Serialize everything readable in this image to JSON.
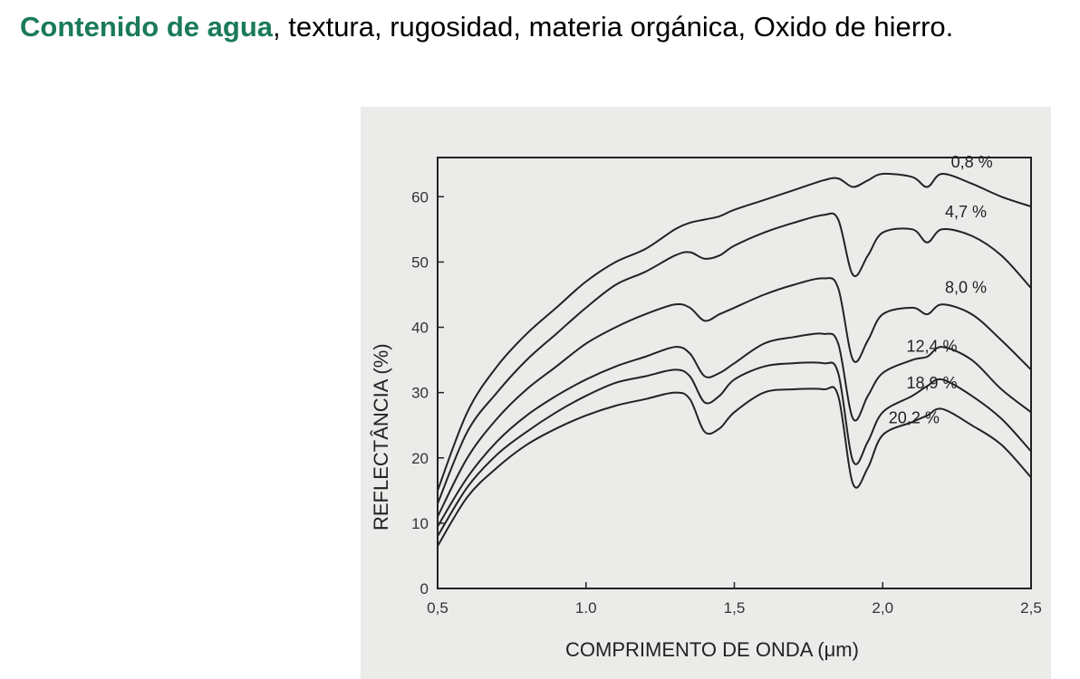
{
  "heading": {
    "accent": "Contenido de agua",
    "rest": ", textura, rugosidad, materia orgánica, Oxido de hierro."
  },
  "colors": {
    "accent": "#1a7a5c",
    "figure_background": "#ebebe9",
    "line": "#222222"
  },
  "chart_data": {
    "type": "line",
    "xlabel": "COMPRIMENTO DE ONDA (μm)",
    "ylabel": "REFLECTÂNCIA (%)",
    "xlim": [
      0.5,
      2.5
    ],
    "ylim": [
      0,
      66
    ],
    "x_ticks": [
      0.5,
      1.0,
      1.5,
      2.0,
      2.5
    ],
    "x_tick_labels": [
      "0,5",
      "1.0",
      "1,5",
      "2,0",
      "2,5"
    ],
    "y_ticks": [
      0,
      10,
      20,
      30,
      40,
      50,
      60
    ],
    "y_tick_labels": [
      "0",
      "10",
      "20",
      "30",
      "40",
      "50",
      "60"
    ],
    "grid": false,
    "legend": "inline labels at right",
    "x": [
      0.5,
      0.6,
      0.7,
      0.8,
      0.9,
      1.0,
      1.1,
      1.2,
      1.3,
      1.35,
      1.4,
      1.45,
      1.5,
      1.6,
      1.7,
      1.8,
      1.85,
      1.9,
      1.95,
      2.0,
      2.1,
      2.15,
      2.2,
      2.3,
      2.4,
      2.5
    ],
    "series": [
      {
        "name": "0,8 %",
        "values": [
          15,
          27,
          34,
          39,
          43,
          47,
          50,
          52,
          55,
          56,
          56.5,
          57,
          58,
          59.5,
          61,
          62.5,
          62.8,
          61.5,
          62.5,
          63.5,
          63,
          61.5,
          63.5,
          62,
          60,
          58.5
        ]
      },
      {
        "name": "4,7 %",
        "values": [
          13,
          24,
          30,
          35,
          39,
          43,
          46.5,
          48.5,
          51,
          51.5,
          50.5,
          51,
          52.5,
          54.5,
          56,
          57.2,
          56.5,
          48,
          51,
          54.5,
          55,
          53,
          55,
          54,
          51,
          46
        ]
      },
      {
        "name": "8,0 %",
        "values": [
          11,
          20,
          26,
          30.5,
          34,
          37.5,
          40,
          42,
          43.5,
          43,
          41,
          42,
          43,
          45,
          46.5,
          47.5,
          46,
          35,
          38,
          42,
          43,
          42,
          43.5,
          42,
          38,
          33.5
        ]
      },
      {
        "name": "12,4 %",
        "values": [
          9.5,
          17,
          22.5,
          26.5,
          29.5,
          32,
          34,
          35.5,
          37,
          36,
          32.5,
          33,
          34.5,
          37.5,
          38.5,
          39,
          37.5,
          26,
          29.5,
          33,
          35,
          35.5,
          37,
          35,
          30.5,
          27
        ]
      },
      {
        "name": "18,9 %",
        "values": [
          8,
          15.5,
          20.5,
          24,
          27,
          29.5,
          31.5,
          32.5,
          33.5,
          32.5,
          28.5,
          29.5,
          32,
          34,
          34.5,
          34.5,
          33,
          19.5,
          22.5,
          27,
          29.5,
          31,
          32,
          29.5,
          26,
          21
        ]
      },
      {
        "name": "20,2 %",
        "values": [
          6.5,
          14,
          18.5,
          22,
          24.5,
          26.5,
          28,
          29,
          30,
          29,
          24,
          24.5,
          27,
          30,
          30.5,
          30.5,
          29.5,
          16,
          18.5,
          23.5,
          25.5,
          26.5,
          27.5,
          25,
          22,
          17
        ]
      }
    ]
  }
}
